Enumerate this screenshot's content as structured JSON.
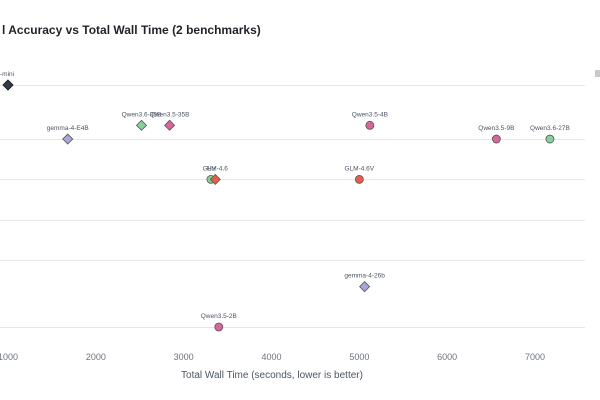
{
  "chart_data": {
    "type": "scatter",
    "title": "l Accuracy vs Total Wall Time (2 benchmarks)",
    "xlabel": "Total Wall Time (seconds, lower is better)",
    "ylabel": "",
    "xlim": [
      1000,
      7700
    ],
    "ylim": [
      0,
      7
    ],
    "x_ticks": [
      1000,
      2000,
      3000,
      4000,
      5000,
      6000,
      7000
    ],
    "grid": true,
    "colors": {
      "green": "#86d19a",
      "pink": "#d9669a",
      "purple": "#a9a6dd",
      "red": "#e0604f",
      "dark": "#333a4a"
    },
    "points": [
      {
        "label": "-mini",
        "x": 1000,
        "y": 6.0,
        "marker": "diamond",
        "color": "dark"
      },
      {
        "label": "Qwen3.6-35B",
        "x": 2520,
        "y": 5.0,
        "marker": "diamond",
        "color": "green"
      },
      {
        "label": "Qwen3.5-35B",
        "x": 2840,
        "y": 5.0,
        "marker": "diamond",
        "color": "pink"
      },
      {
        "label": "gemma-4-E4B",
        "x": 1680,
        "y": 4.66,
        "marker": "diamond",
        "color": "purple"
      },
      {
        "label": "Qwen3.5-4B",
        "x": 5120,
        "y": 5.0,
        "marker": "circle",
        "color": "pink"
      },
      {
        "label": "Qwen3.5-9B",
        "x": 6560,
        "y": 4.66,
        "marker": "circle",
        "color": "pink"
      },
      {
        "label": "Qwen3.6-27B",
        "x": 7170,
        "y": 4.66,
        "marker": "circle",
        "color": "green"
      },
      {
        "label": "Hu",
        "x": 3310,
        "y": 3.66,
        "marker": "circle",
        "color": "green"
      },
      {
        "label": "GLM-4.6",
        "x": 3360,
        "y": 3.66,
        "marker": "diamond",
        "color": "red"
      },
      {
        "label": "GLM-4.6V",
        "x": 5000,
        "y": 3.66,
        "marker": "circle",
        "color": "red"
      },
      {
        "label": "gemma-4-26b",
        "x": 5060,
        "y": 1.0,
        "marker": "diamond",
        "color": "purple"
      },
      {
        "label": "Qwen3.5-2B",
        "x": 3400,
        "y": 0.0,
        "marker": "circle",
        "color": "pink"
      }
    ]
  }
}
